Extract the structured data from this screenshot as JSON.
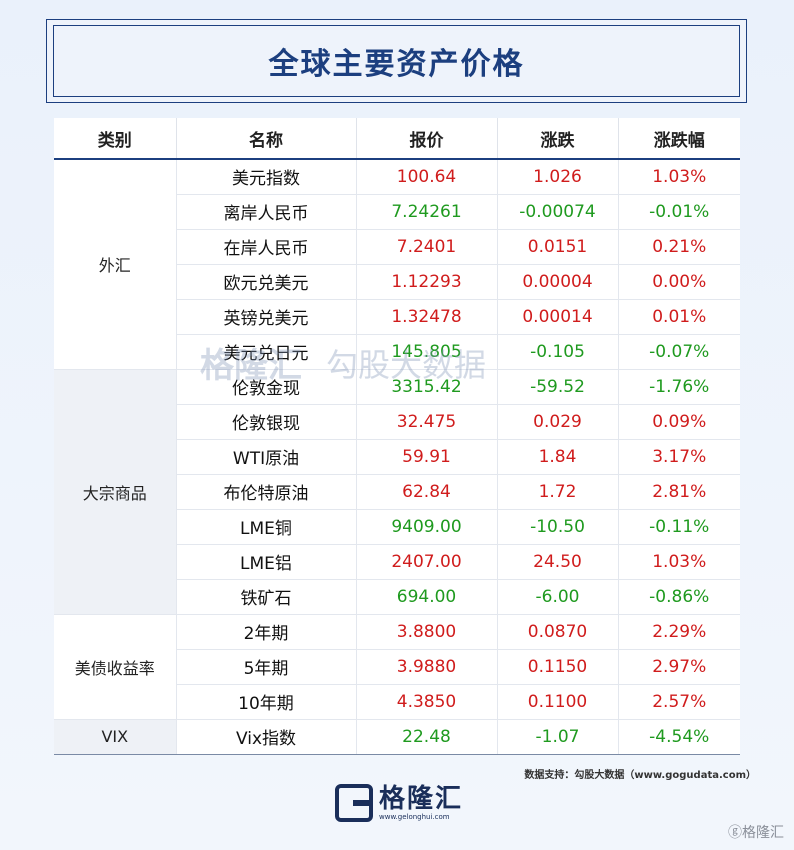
{
  "title": "全球主要资产价格",
  "headers": [
    "类别",
    "名称",
    "报价",
    "涨跌",
    "涨跌幅"
  ],
  "rows": [
    {
      "category": "外汇",
      "name": "美元指数",
      "price": "100.64",
      "change": "1.026",
      "pct": "1.03%",
      "dir": "up"
    },
    {
      "category": "",
      "name": "离岸人民币",
      "price": "7.24261",
      "change": "-0.00074",
      "pct": "-0.01%",
      "dir": "down"
    },
    {
      "category": "",
      "name": "在岸人民币",
      "price": "7.2401",
      "change": "0.0151",
      "pct": "0.21%",
      "dir": "up"
    },
    {
      "category": "",
      "name": "欧元兑美元",
      "price": "1.12293",
      "change": "0.00004",
      "pct": "0.00%",
      "dir": "up"
    },
    {
      "category": "",
      "name": "英镑兑美元",
      "price": "1.32478",
      "change": "0.00014",
      "pct": "0.01%",
      "dir": "up"
    },
    {
      "category": "",
      "name": "美元兑日元",
      "price": "145.805",
      "change": "-0.105",
      "pct": "-0.07%",
      "dir": "down"
    },
    {
      "category": "大宗商品",
      "name": "伦敦金现",
      "price": "3315.42",
      "change": "-59.52",
      "pct": "-1.76%",
      "dir": "down"
    },
    {
      "category": "",
      "name": "伦敦银现",
      "price": "32.475",
      "change": "0.029",
      "pct": "0.09%",
      "dir": "up"
    },
    {
      "category": "",
      "name": "WTI原油",
      "price": "59.91",
      "change": "1.84",
      "pct": "3.17%",
      "dir": "up"
    },
    {
      "category": "",
      "name": "布伦特原油",
      "price": "62.84",
      "change": "1.72",
      "pct": "2.81%",
      "dir": "up"
    },
    {
      "category": "",
      "name": "LME铜",
      "price": "9409.00",
      "change": "-10.50",
      "pct": "-0.11%",
      "dir": "down"
    },
    {
      "category": "",
      "name": "LME铝",
      "price": "2407.00",
      "change": "24.50",
      "pct": "1.03%",
      "dir": "up"
    },
    {
      "category": "",
      "name": "铁矿石",
      "price": "694.00",
      "change": "-6.00",
      "pct": "-0.86%",
      "dir": "down"
    },
    {
      "category": "美债收益率",
      "name": "2年期",
      "price": "3.8800",
      "change": "0.0870",
      "pct": "2.29%",
      "dir": "up"
    },
    {
      "category": "",
      "name": "5年期",
      "price": "3.9880",
      "change": "0.1150",
      "pct": "2.97%",
      "dir": "up"
    },
    {
      "category": "",
      "name": "10年期",
      "price": "4.3850",
      "change": "0.1100",
      "pct": "2.57%",
      "dir": "up"
    },
    {
      "category": "VIX",
      "name": "Vix指数",
      "price": "22.48",
      "change": "-1.07",
      "pct": "-4.54%",
      "dir": "down"
    }
  ],
  "groups": [
    {
      "label": "外汇",
      "span": 6,
      "shade": false
    },
    {
      "label": "大宗商品",
      "span": 7,
      "shade": true
    },
    {
      "label": "美债收益率",
      "span": 3,
      "shade": false
    },
    {
      "label": "VIX",
      "span": 1,
      "shade": true
    }
  ],
  "source": "数据支持：勾股大数据（www.gogudata.com）",
  "logo": {
    "name": "格隆汇",
    "url": "www.gelonghui.com"
  },
  "corner_mark": "ⓖ格隆汇",
  "watermark": {
    "left": "格隆汇",
    "right": "勾股大数据",
    "left_url": "gelonghui.com",
    "right_url": "www.gogudata.com"
  },
  "colors": {
    "up": "#d01c1c",
    "down": "#1f9a1f",
    "brand": "#1c3f7f"
  }
}
